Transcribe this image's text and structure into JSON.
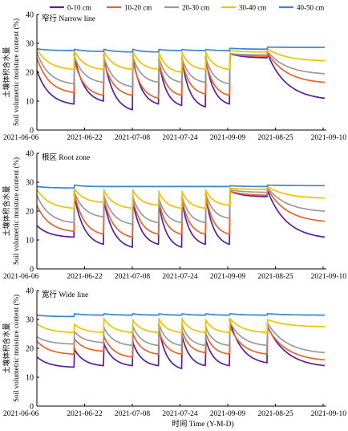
{
  "legend": [
    {
      "label": "0-10 cm",
      "color": "#5b1f9e"
    },
    {
      "label": "10-20 cm",
      "color": "#e8642a"
    },
    {
      "label": "20-30 cm",
      "color": "#9a9a9a"
    },
    {
      "label": "30-40 cm",
      "color": "#f2c200"
    },
    {
      "label": "40-50 cm",
      "color": "#3b86cf"
    }
  ],
  "xlabel": "时间 Time (Y-M-D)",
  "ylabel_cn": "土壤体积含水量",
  "ylabel_en": "Soil volumetric moisture content (%)",
  "chart_data": [
    {
      "type": "line",
      "title": "窄行 Narrow line",
      "ylim": [
        0,
        40
      ],
      "yticks": [
        0,
        10,
        20,
        30,
        40
      ],
      "xtick_labels": [
        "2021-06-06",
        "2021-06-22",
        "2021-07-08",
        "2021-07-24",
        "2021-09-09",
        "2021-08-25",
        "2021-09-10"
      ],
      "grid": false,
      "cycles": [
        {
          "p": [
            20.6,
            24.9,
            26.8,
            28.0,
            28.1
          ],
          "t": [
            9,
            13,
            16,
            21,
            27.5
          ]
        },
        {
          "p": [
            26.5,
            24.6,
            25.9,
            27.7,
            28.0
          ],
          "t": [
            10,
            12,
            16.5,
            21,
            27.2
          ]
        },
        {
          "p": [
            26.2,
            24.4,
            25.8,
            27.6,
            28.0
          ],
          "t": [
            7,
            12,
            15,
            21,
            27
          ]
        },
        {
          "p": [
            26.0,
            24.6,
            25.9,
            27.5,
            28.0
          ],
          "t": [
            9,
            11,
            16.5,
            21,
            27
          ]
        },
        {
          "p": [
            24.7,
            24.4,
            25.6,
            27.3,
            27.9
          ],
          "t": [
            8.5,
            12,
            16.5,
            20,
            27.5
          ]
        },
        {
          "p": [
            25.0,
            24.6,
            25.3,
            27.1,
            27.9
          ],
          "t": [
            8,
            12.5,
            16.5,
            21,
            27.5
          ]
        },
        {
          "p": [
            25.5,
            24.8,
            25.6,
            27.3,
            27.9
          ],
          "t": [
            9,
            12,
            16,
            21,
            27.5
          ]
        },
        {
          "p": [
            26.5,
            26.5,
            26.5,
            27.5,
            28.3
          ],
          "t": [
            25,
            25.5,
            26,
            27,
            28
          ]
        },
        {
          "p": [
            26.8,
            27.0,
            27.4,
            28.2,
            28.7
          ],
          "t": [
            11,
            16.5,
            19.5,
            24,
            28.6
          ]
        }
      ]
    },
    {
      "type": "line",
      "title": "根区 Root zone",
      "ylim": [
        0,
        40
      ],
      "yticks": [
        0,
        10,
        20,
        30,
        40
      ],
      "xtick_labels": [
        "2021-06-06",
        "2021-06-22",
        "2021-07-08",
        "2021-07-24",
        "2021-09-09",
        "2021-08-25",
        "2021-09-10"
      ],
      "grid": false,
      "cycles": [
        {
          "p": [
            15.0,
            22.0,
            25.5,
            27.5,
            28.5
          ],
          "t": [
            11,
            13,
            16,
            21,
            28
          ]
        },
        {
          "p": [
            26.0,
            26.8,
            27.0,
            28.0,
            29.0
          ],
          "t": [
            8.5,
            12,
            18,
            23,
            28.5
          ]
        },
        {
          "p": [
            24.5,
            25.0,
            26.0,
            27.5,
            28.5
          ],
          "t": [
            7.5,
            11,
            15.5,
            21,
            28.5
          ]
        },
        {
          "p": [
            24.0,
            24.5,
            25.5,
            27.5,
            28.5
          ],
          "t": [
            8.5,
            12,
            16,
            22,
            28.5
          ]
        },
        {
          "p": [
            23.5,
            24.0,
            25.0,
            27.0,
            28.5
          ],
          "t": [
            7.5,
            12,
            16,
            21,
            28.5
          ]
        },
        {
          "p": [
            24.0,
            24.5,
            25.5,
            27.0,
            28.5
          ],
          "t": [
            8.5,
            12,
            16,
            21,
            28.5
          ]
        },
        {
          "p": [
            26.0,
            26.0,
            26.5,
            27.5,
            28.5
          ],
          "t": [
            8.5,
            12,
            17.5,
            22,
            28.5
          ]
        },
        {
          "p": [
            27.0,
            27.0,
            27.5,
            28.0,
            28.8
          ],
          "t": [
            25,
            25.5,
            26.5,
            27.5,
            28.5
          ]
        },
        {
          "p": [
            27.5,
            28.0,
            28.3,
            28.6,
            29.0
          ],
          "t": [
            11,
            16.5,
            20,
            24.5,
            28.8
          ]
        }
      ]
    },
    {
      "type": "line",
      "title": "宽行 Wide line",
      "ylim": [
        0,
        40
      ],
      "yticks": [
        0,
        10,
        20,
        30,
        40
      ],
      "xtick_labels": [
        "2021-06-06",
        "2021-06-22",
        "2021-07-08",
        "2021-07-24",
        "2021-09-09",
        "2021-08-25",
        "2021-09-10"
      ],
      "grid": false,
      "cycles": [
        {
          "p": [
            17.0,
            22.5,
            24.0,
            28.5,
            31.5
          ],
          "t": [
            13.5,
            18,
            21.5,
            25.5,
            31
          ]
        },
        {
          "p": [
            20.0,
            23.5,
            26.0,
            28.5,
            32.0
          ],
          "t": [
            14,
            19,
            22,
            25.5,
            31.5
          ]
        },
        {
          "p": [
            22.0,
            24.5,
            27.5,
            30.5,
            32.0
          ],
          "t": [
            14,
            17,
            21,
            25.5,
            31.5
          ]
        },
        {
          "p": [
            22.5,
            25.5,
            28.0,
            30.0,
            32.0
          ],
          "t": [
            14,
            18,
            21,
            25.5,
            31.5
          ]
        },
        {
          "p": [
            28.0,
            26.5,
            29.0,
            30.5,
            32.0
          ],
          "t": [
            13,
            18,
            21,
            25.5,
            31.5
          ]
        },
        {
          "p": [
            25.0,
            26.5,
            28.5,
            30.5,
            32.0
          ],
          "t": [
            14,
            18.5,
            21,
            25.5,
            31.5
          ]
        },
        {
          "p": [
            23.5,
            25.5,
            27.5,
            30.0,
            32.0
          ],
          "t": [
            14,
            18,
            21,
            25.5,
            31.5
          ]
        },
        {
          "p": [
            30.0,
            28.0,
            29.5,
            30.5,
            32.0
          ],
          "t": [
            15,
            18,
            21,
            25.5,
            31.5
          ]
        },
        {
          "p": [
            28.0,
            27.5,
            29.0,
            30.0,
            32.0
          ],
          "t": [
            14,
            16,
            18.5,
            27.5,
            31.5
          ]
        }
      ]
    }
  ]
}
